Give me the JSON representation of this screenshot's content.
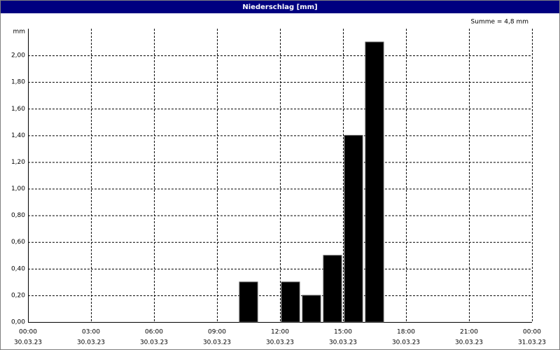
{
  "chart_data": {
    "type": "bar",
    "title": "Niederschlag [mm]",
    "ylabel": "mm",
    "annotation": "Summe = 4,8 mm",
    "x": [
      10,
      12,
      13,
      14,
      15,
      16
    ],
    "values": [
      0.3,
      0.3,
      0.2,
      0.5,
      1.4,
      2.1
    ],
    "color": "#000000",
    "xlim": [
      0,
      24
    ],
    "xticks": [
      {
        "value": 0,
        "label": "00:00"
      },
      {
        "value": 3,
        "label": "03:00"
      },
      {
        "value": 6,
        "label": "06:00"
      },
      {
        "value": 9,
        "label": "09:00"
      },
      {
        "value": 12,
        "label": "12:00"
      },
      {
        "value": 15,
        "label": "15:00"
      },
      {
        "value": 18,
        "label": "18:00"
      },
      {
        "value": 21,
        "label": "21:00"
      },
      {
        "value": 24,
        "label": "00:00"
      }
    ],
    "xtick_dates": [
      "30.03.23",
      "30.03.23",
      "30.03.23",
      "30.03.23",
      "30.03.23",
      "30.03.23",
      "30.03.23",
      "30.03.23",
      "31.03.23"
    ],
    "ylim": [
      0,
      2.2
    ],
    "yticks": [
      {
        "value": 0,
        "label": "0,00"
      },
      {
        "value": 0.2,
        "label": "0,20"
      },
      {
        "value": 0.4,
        "label": "0,40"
      },
      {
        "value": 0.6,
        "label": "0,60"
      },
      {
        "value": 0.8,
        "label": "0,80"
      },
      {
        "value": 1.0,
        "label": "1,00"
      },
      {
        "value": 1.2,
        "label": "1,20"
      },
      {
        "value": 1.4,
        "label": "1,40"
      },
      {
        "value": 1.6,
        "label": "1,60"
      },
      {
        "value": 1.8,
        "label": "1,80"
      },
      {
        "value": 2.0,
        "label": "2,00"
      }
    ],
    "grid": true
  }
}
